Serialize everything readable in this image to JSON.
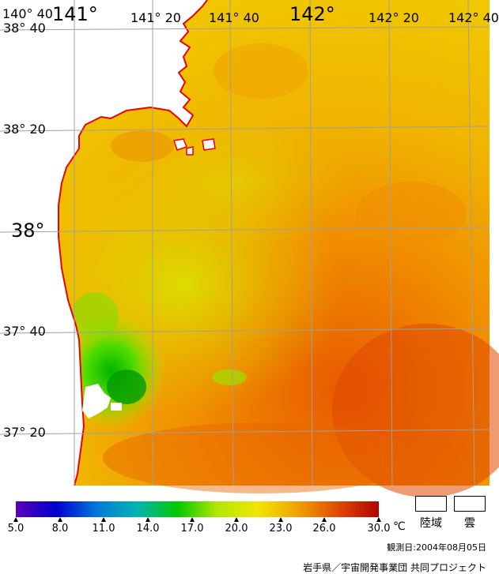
{
  "map": {
    "lon_labels": [
      "140° 40",
      "141°",
      "141° 20",
      "141° 40",
      "142°",
      "142° 20",
      "142° 40"
    ],
    "lat_labels": [
      "38° 40",
      "38° 20",
      "38°",
      "37° 40",
      "37° 20"
    ]
  },
  "colorbar": {
    "ticks": [
      "5.0",
      "8.0",
      "11.0",
      "14.0",
      "17.0",
      "20.0",
      "23.0",
      "26.0",
      "30.0"
    ],
    "unit": "℃",
    "colors": [
      "#5a00b4",
      "#0000d0",
      "#0078d8",
      "#00b4b4",
      "#00c800",
      "#b4e600",
      "#f0e600",
      "#f0a000",
      "#e04800",
      "#b40000"
    ]
  },
  "legend": {
    "land_label": "陸域",
    "cloud_label": "雲"
  },
  "observation": "観測日:2004年08月05日",
  "credit": "岩手県／宇宙開発事業団 共同プロジェクト"
}
